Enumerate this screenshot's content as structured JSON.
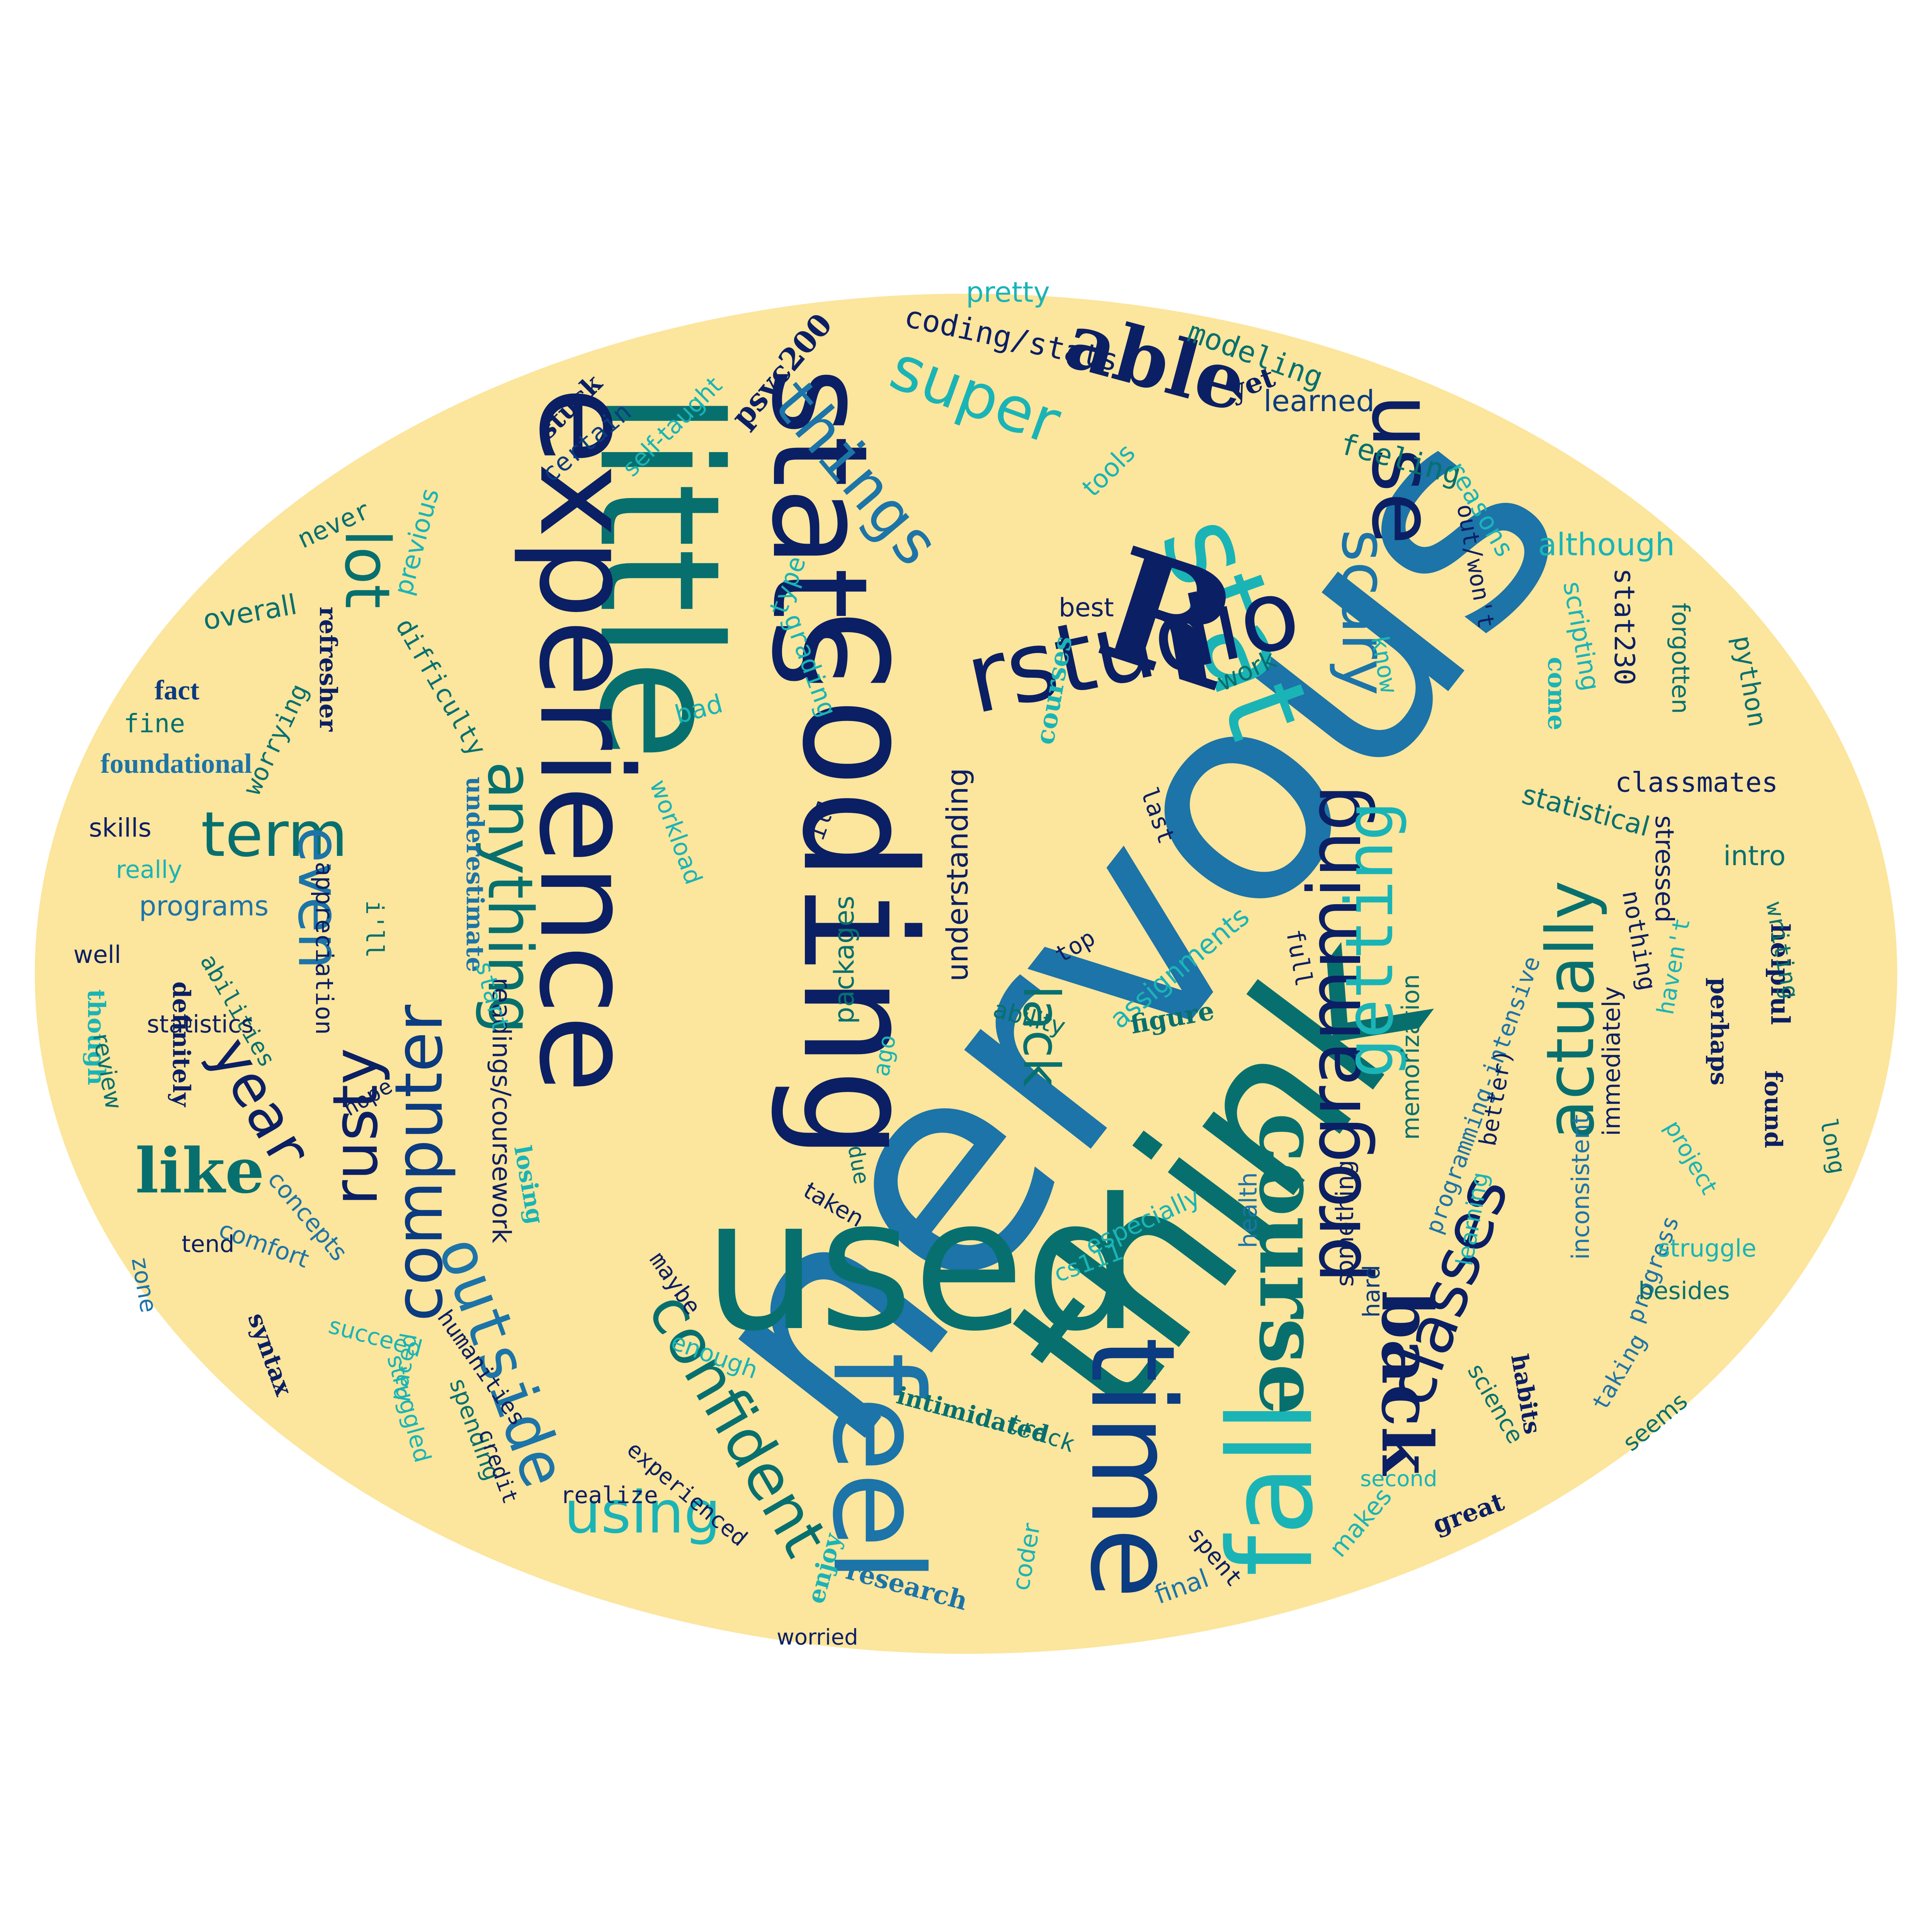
{
  "cloud": {
    "background_color": "#fce59c",
    "palette": [
      "#0b1f64",
      "#1c74a8",
      "#07706f",
      "#1ab4b6",
      "#0b3b80"
    ],
    "words": {
      "nervous": "nervous",
      "think": "think",
      "used": "used",
      "little": "little",
      "experience": "experience",
      "coding": "coding",
      "stats": "stats",
      "stat": "stat",
      "r": "R",
      "rstudio": "rstudio",
      "feel": "feel",
      "time": "time",
      "fall": "fall",
      "course": "course",
      "programming": "programming",
      "getting": "getting",
      "use": "use",
      "scary": "scary",
      "actually": "actually",
      "classes": "classes",
      "back": "back",
      "confident": "confident",
      "outside": "outside",
      "using": "using",
      "computer": "computer",
      "rusty": "rusty",
      "anything": "anything",
      "term": "term",
      "lot": "lot",
      "even": "even",
      "year": "year",
      "lack": "lack",
      "like": "like",
      "able": "able",
      "super": "super",
      "things": "things",
      "pretty": "pretty",
      "coding_stats": "coding/stats",
      "modeling": "modeling",
      "learned": "learned",
      "yet": "yet",
      "feeling": "feeling",
      "psyc200": "psyc200",
      "stuck": "stuck",
      "certain": "certain",
      "self_taught": "self-taught",
      "tools": "tools",
      "reasons": "reasons",
      "out_wont": "out/won't",
      "although": "although",
      "never": "never",
      "previous": "previous",
      "overall": "overall",
      "type": "type",
      "best": "best",
      "stat230": "stat230",
      "forgotten": "forgotten",
      "scripting": "scripting",
      "work": "work",
      "refresher": "refresher",
      "difficulty": "difficulty",
      "grading": "grading",
      "worrying": "worrying",
      "fact": "fact",
      "fine": "fine",
      "foundational": "foundational",
      "bad": "bad",
      "understanding": "understanding",
      "know": "know",
      "come": "come",
      "python": "python",
      "courses": "courses",
      "classmates": "classmates",
      "statistical": "statistical",
      "skills": "skills",
      "really": "really",
      "underestimate": "underestimate",
      "workload": "workload",
      "last": "last",
      "ill_lower": "ill",
      "intro": "intro",
      "programs": "programs",
      "appreciation": "appreciation",
      "readings_coursework": "readings/coursework",
      "memorization": "memorization",
      "stressed": "stressed",
      "nothing": "nothing",
      "well": "well",
      "ill": "i'll",
      "packages": "packages",
      "top": "top",
      "assignments": "assignments",
      "full": "full",
      "helpful": "helpful",
      "writing": "writing",
      "perhaps": "perhaps",
      "havent": "haven't",
      "though": "though",
      "abilities": "abilities",
      "start": "start",
      "ability": "ability",
      "figure": "figure",
      "statistics": "statistics",
      "definitely": "definitely",
      "review": "review",
      "ago": "ago",
      "immediately": "immediately",
      "programming_intensive": "programming-intensive",
      "better": "better)",
      "found": "found",
      "long": "long",
      "hope": "hope",
      "due": "due",
      "something": "something",
      "learning": "learning",
      "inconsistent": "inconsistent",
      "project": "project",
      "losing": "losing",
      "taken": "taken",
      "especially": "especially",
      "health": "health",
      "tend": "tend",
      "comfort": "comfort",
      "concepts": "concepts",
      "zone": "zone",
      "maybe": "maybe",
      "cs111": "cs111",
      "hard": "hard",
      "progress": "progress",
      "struggle": "struggle",
      "besides": "besides",
      "syntax": "syntax",
      "humanities": "humanities",
      "succeed": "succeed",
      "struggled": "struggled",
      "enough": "enough",
      "intimidated": "intimidated",
      "track": "track",
      "science": "science",
      "taking": "taking",
      "seems": "seems",
      "habits": "habits",
      "spending": "spending",
      "credit": "credit",
      "paced": "paced",
      "experienced": "experienced",
      "realize": "realize",
      "second": "second",
      "great": "great",
      "makes": "makes",
      "coder": "coder",
      "spent": "spent",
      "enjoy": "enjoy",
      "research": "research",
      "final": "final",
      "worried": "worried"
    }
  }
}
